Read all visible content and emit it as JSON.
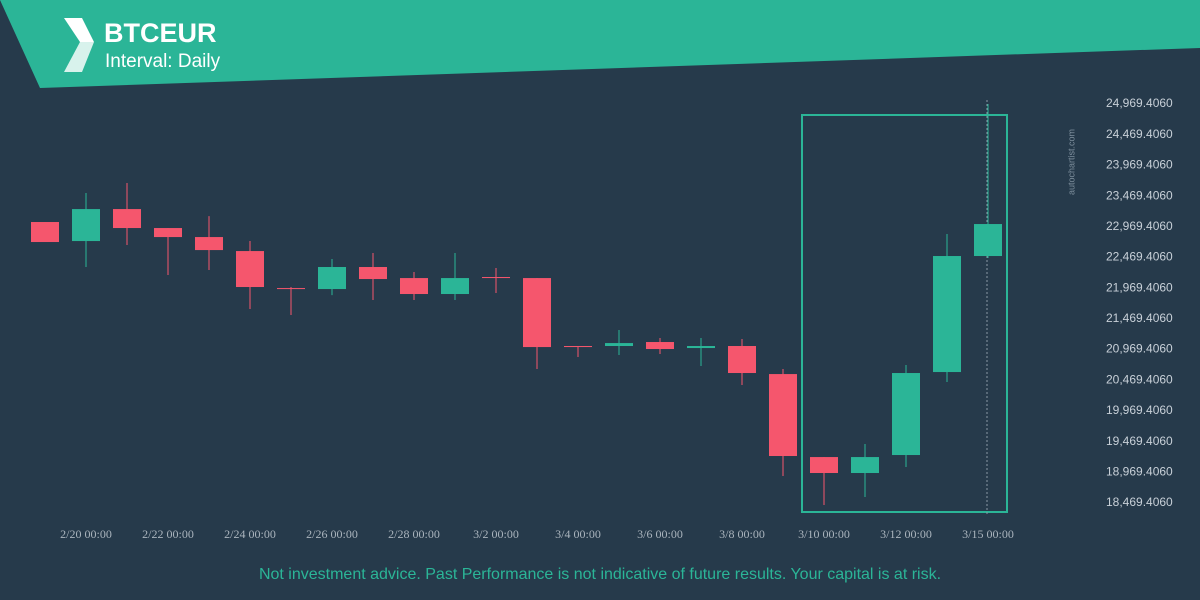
{
  "chart_data": {
    "type": "candlestick",
    "title": "BTCEUR",
    "subtitle": "Interval: Daily",
    "watermark": "autochartist.com",
    "footer": "Not investment advice. Past Performance is not indicative of future results. Your capital is at risk.",
    "categories": [
      null,
      "2/20 00:00",
      null,
      "2/22 00:00",
      null,
      "2/24 00:00",
      null,
      "2/26 00:00",
      null,
      "2/28 00:00",
      null,
      "3/2 00:00",
      null,
      "3/4 00:00",
      null,
      "3/6 00:00",
      null,
      "3/8 00:00",
      null,
      "3/10 00:00",
      null,
      "3/12 00:00",
      null,
      "3/15 00:00"
    ],
    "open": [
      23047,
      22737,
      23258,
      22949,
      22802,
      22574,
      21971,
      21955,
      22314,
      22134,
      21874,
      22151,
      22134,
      21027,
      21027,
      21092,
      20994,
      21027,
      20570,
      19218,
      18958,
      19251,
      20603,
      22493
    ],
    "high": [
      23047,
      23519,
      23682,
      22949,
      23144,
      22737,
      21988,
      22444,
      22542,
      22232,
      22542,
      22297,
      22134,
      21027,
      21287,
      21157,
      21157,
      21141,
      20652,
      19218,
      19430,
      20717,
      22851,
      24969
    ],
    "low": [
      22721,
      22314,
      22672,
      22183,
      22265,
      21629,
      21532,
      21857,
      21776,
      21776,
      21776,
      21890,
      20652,
      20847,
      20880,
      20896,
      20701,
      20391,
      18909,
      18436,
      18567,
      19055,
      20440,
      22460
    ],
    "close": [
      22721,
      23258,
      22949,
      22802,
      22590,
      21988,
      21955,
      22314,
      22118,
      21874,
      22134,
      22134,
      21010,
      21010,
      21075,
      20978,
      21027,
      20587,
      19235,
      18958,
      19218,
      20587,
      22493,
      23014
    ],
    "up_color": "#2bb597",
    "down_color": "#f5566d",
    "ylim": [
      18300,
      25100
    ],
    "yticks": [
      {
        "value": 18469.406,
        "label": "18,469.4060"
      },
      {
        "value": 18969.406,
        "label": "18,969.4060"
      },
      {
        "value": 19469.406,
        "label": "19,469.4060"
      },
      {
        "value": 19969.406,
        "label": "19,969.4060"
      },
      {
        "value": 20469.406,
        "label": "20,469.4060"
      },
      {
        "value": 20969.406,
        "label": "20,969.4060"
      },
      {
        "value": 21469.406,
        "label": "21,469.4060"
      },
      {
        "value": 21969.406,
        "label": "21,969.4060"
      },
      {
        "value": 22469.406,
        "label": "22,469.4060"
      },
      {
        "value": 22969.406,
        "label": "22,969.4060"
      },
      {
        "value": 23469.406,
        "label": "23,469.4060"
      },
      {
        "value": 23969.406,
        "label": "23,969.4060"
      },
      {
        "value": 24469.406,
        "label": "24,469.4060"
      },
      {
        "value": 24969.406,
        "label": "24,969.4060"
      }
    ]
  }
}
